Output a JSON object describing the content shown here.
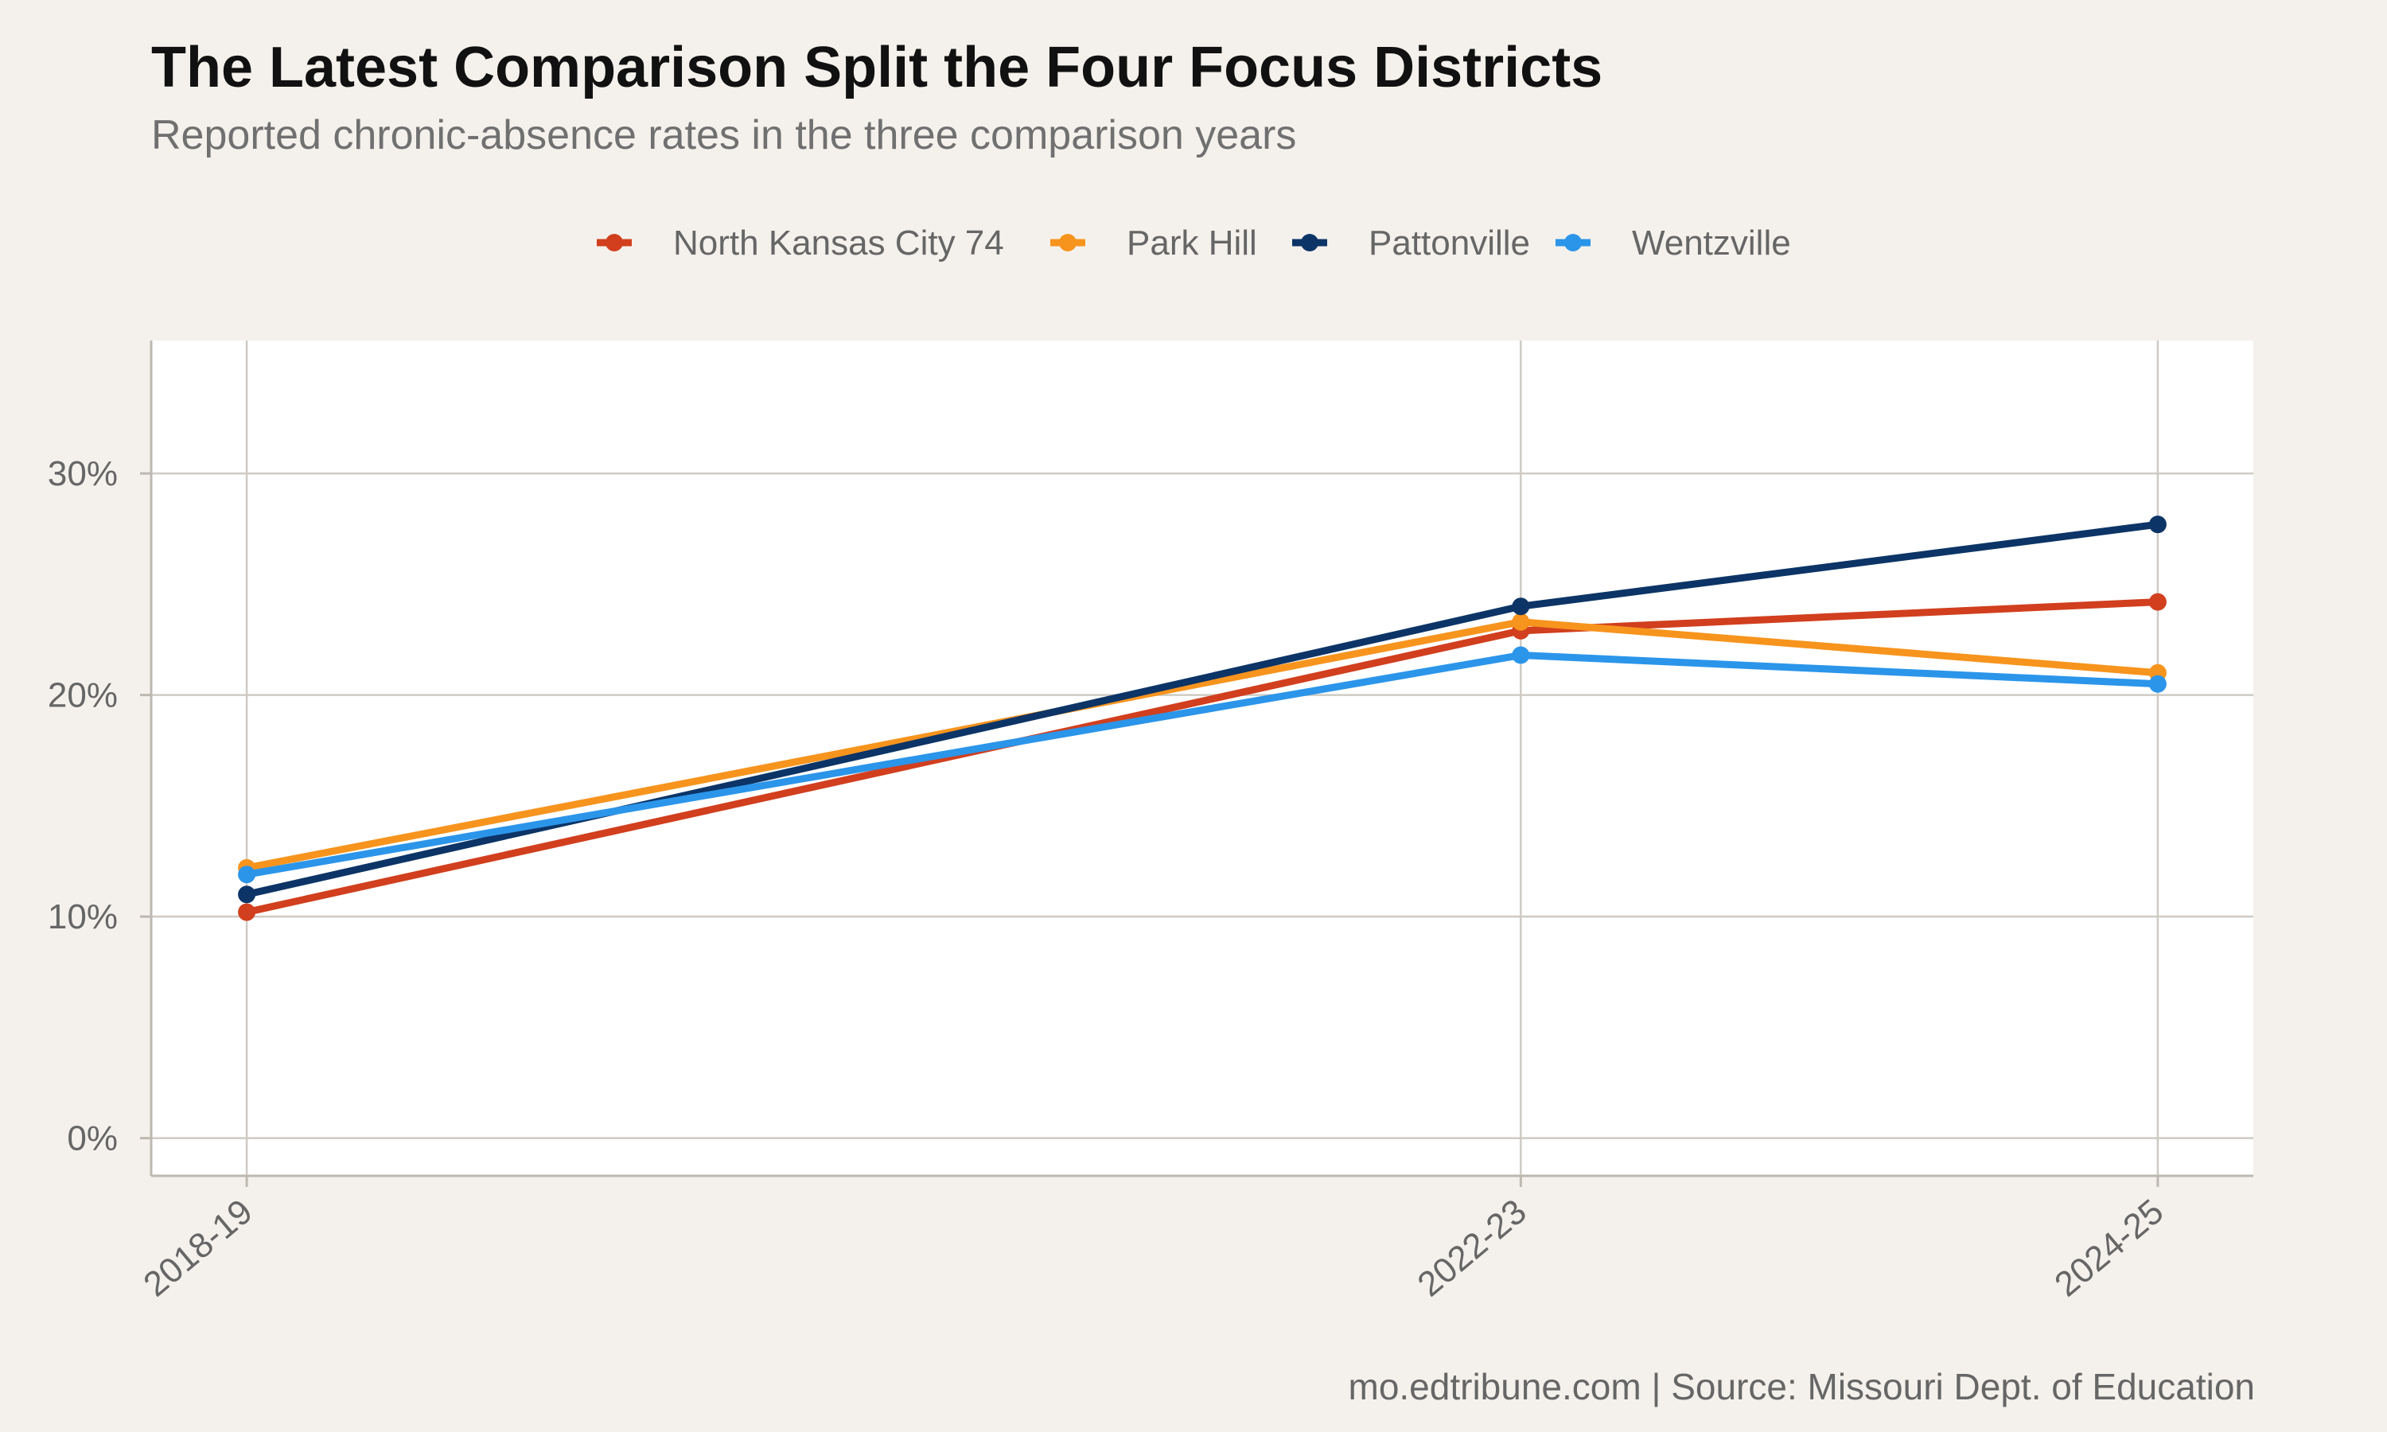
{
  "chart_data": {
    "type": "line",
    "title": "The Latest Comparison Split the Four Focus Districts",
    "subtitle": "Reported chronic-absence rates in the three comparison years",
    "caption": "mo.edtribune.com | Source: Missouri Dept. of Education",
    "xlabel": "",
    "ylabel": "",
    "x": [
      "2018-19",
      "2022-23",
      "2024-25"
    ],
    "x_numeric": [
      2019,
      2023,
      2025
    ],
    "y_ticks": [
      "0%",
      "10%",
      "20%",
      "30%"
    ],
    "y_tick_values": [
      0,
      10,
      20,
      30
    ],
    "ylim": [
      0,
      36
    ],
    "grid": true,
    "legend_position": "top",
    "series": [
      {
        "name": "North Kansas City 74",
        "color": "#d13f1e",
        "values": [
          10.2,
          22.9,
          24.2
        ]
      },
      {
        "name": "Park Hill",
        "color": "#f7941d",
        "values": [
          12.2,
          23.3,
          21.0
        ]
      },
      {
        "name": "Pattonville",
        "color": "#0c3466",
        "values": [
          11.0,
          24.0,
          27.7
        ]
      },
      {
        "name": "Wentzville",
        "color": "#2b95ea",
        "values": [
          11.9,
          21.8,
          20.5
        ]
      }
    ]
  }
}
